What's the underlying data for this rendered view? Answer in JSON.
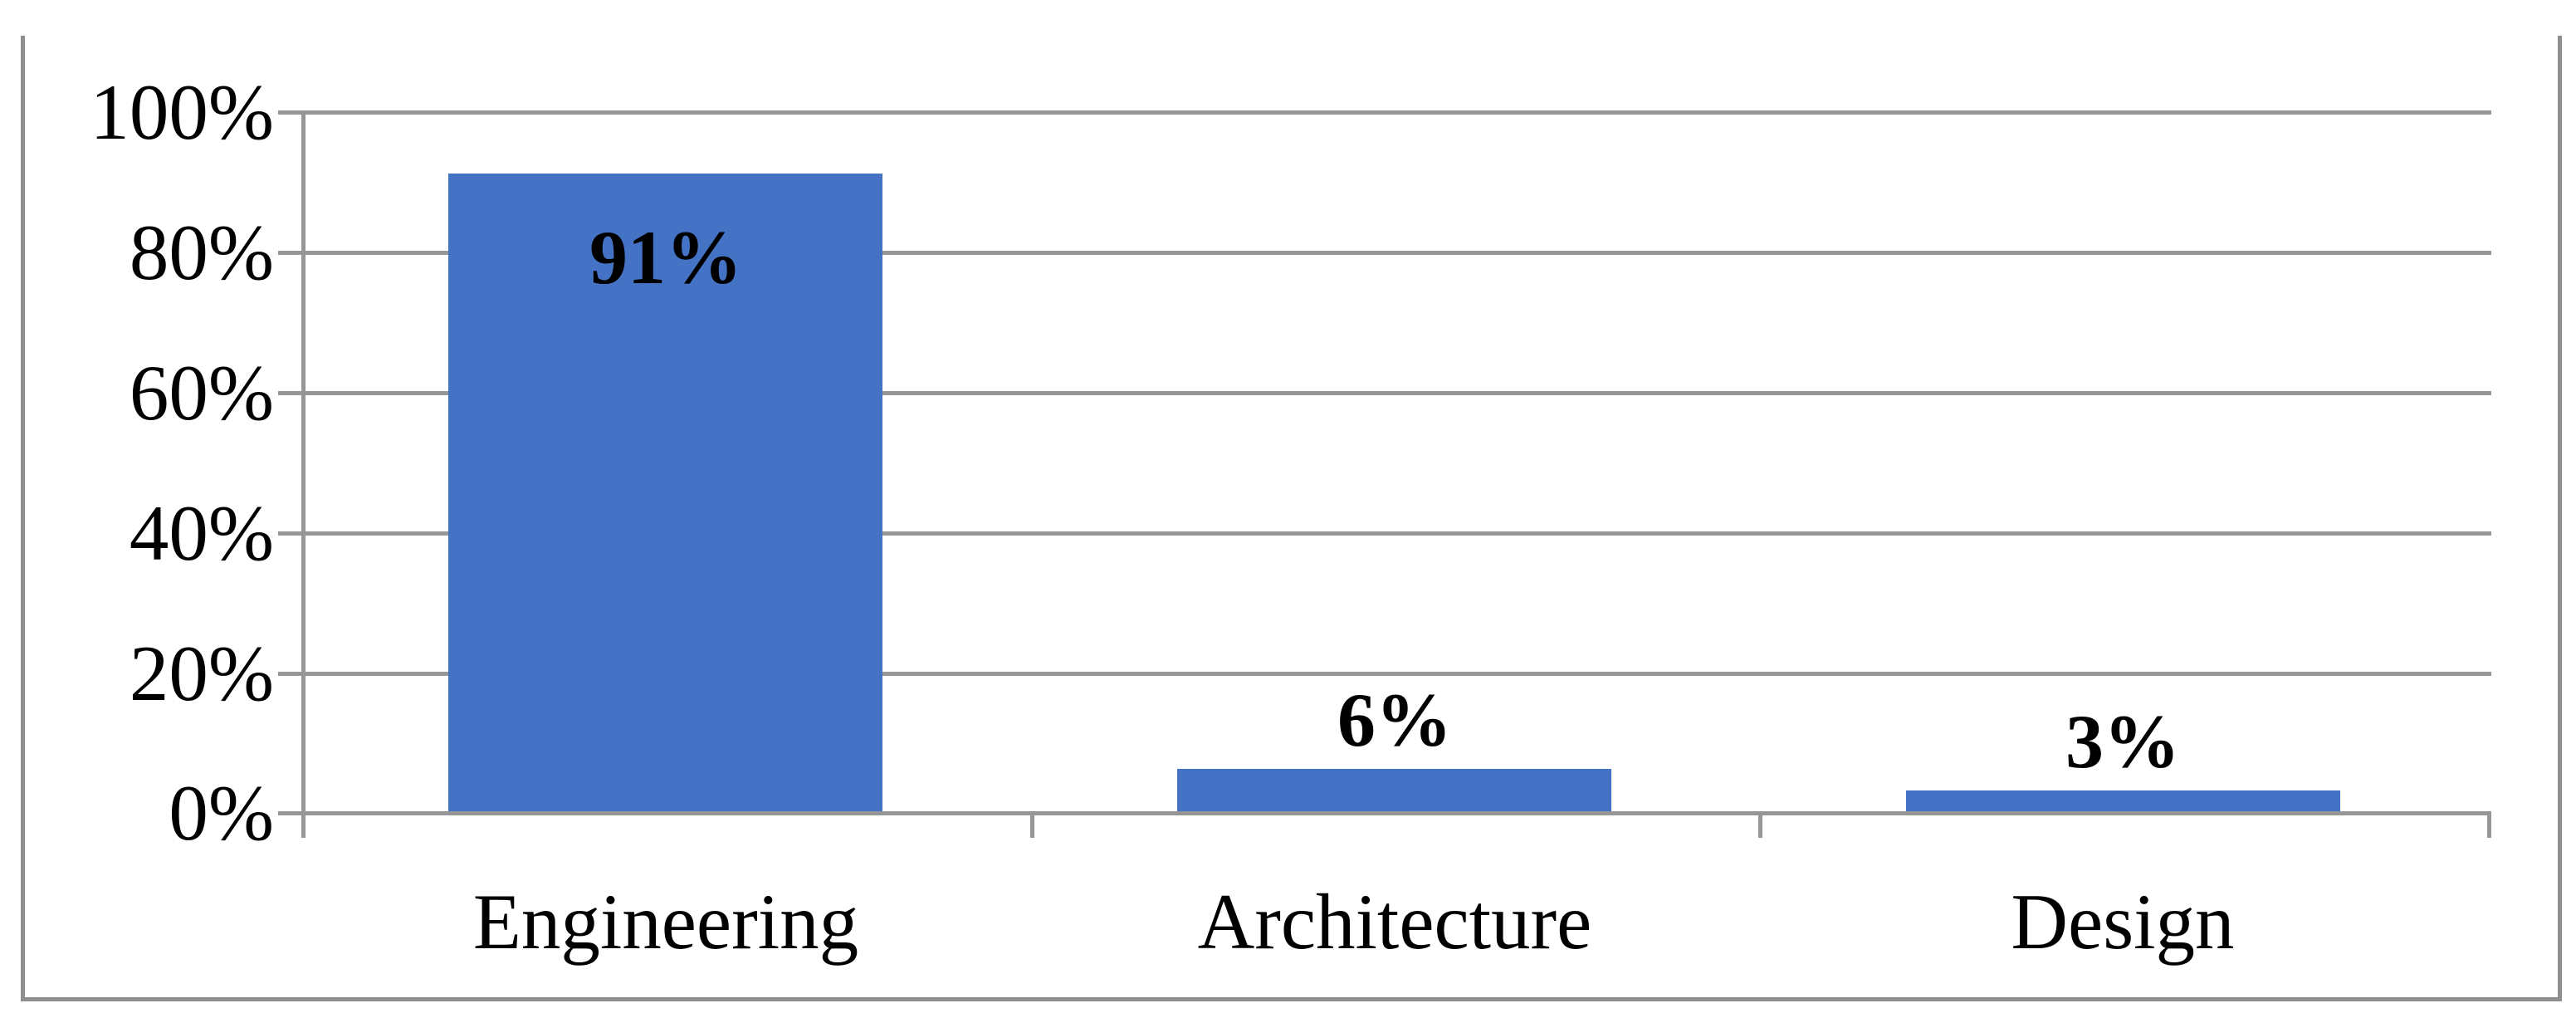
{
  "chart_data": {
    "type": "bar",
    "title": "",
    "xlabel": "",
    "ylabel": "",
    "categories": [
      "Engineering",
      "Architecture",
      "Design"
    ],
    "values": [
      91,
      6,
      3
    ],
    "value_labels": [
      "91%",
      "6%",
      "3%"
    ],
    "data_label_positions": [
      "inside-end",
      "outside-end",
      "outside-end"
    ],
    "y_axis": {
      "min": 0,
      "max": 100,
      "tick_values": [
        0,
        20,
        40,
        60,
        80,
        100
      ],
      "tick_labels": [
        "0%",
        "20%",
        "40%",
        "60%",
        "80%",
        "100%"
      ],
      "format": "percent"
    },
    "grid": true,
    "legend": false,
    "bar_color": "#4472C4"
  },
  "style": {
    "bar_color": "#4472C4",
    "gridline_color": "#969696",
    "axis_color": "#969696",
    "tick_color": "#969696",
    "frame_border_color": "#8F8F8F",
    "text_color": "#000000",
    "background_color": "#FFFFFF"
  }
}
